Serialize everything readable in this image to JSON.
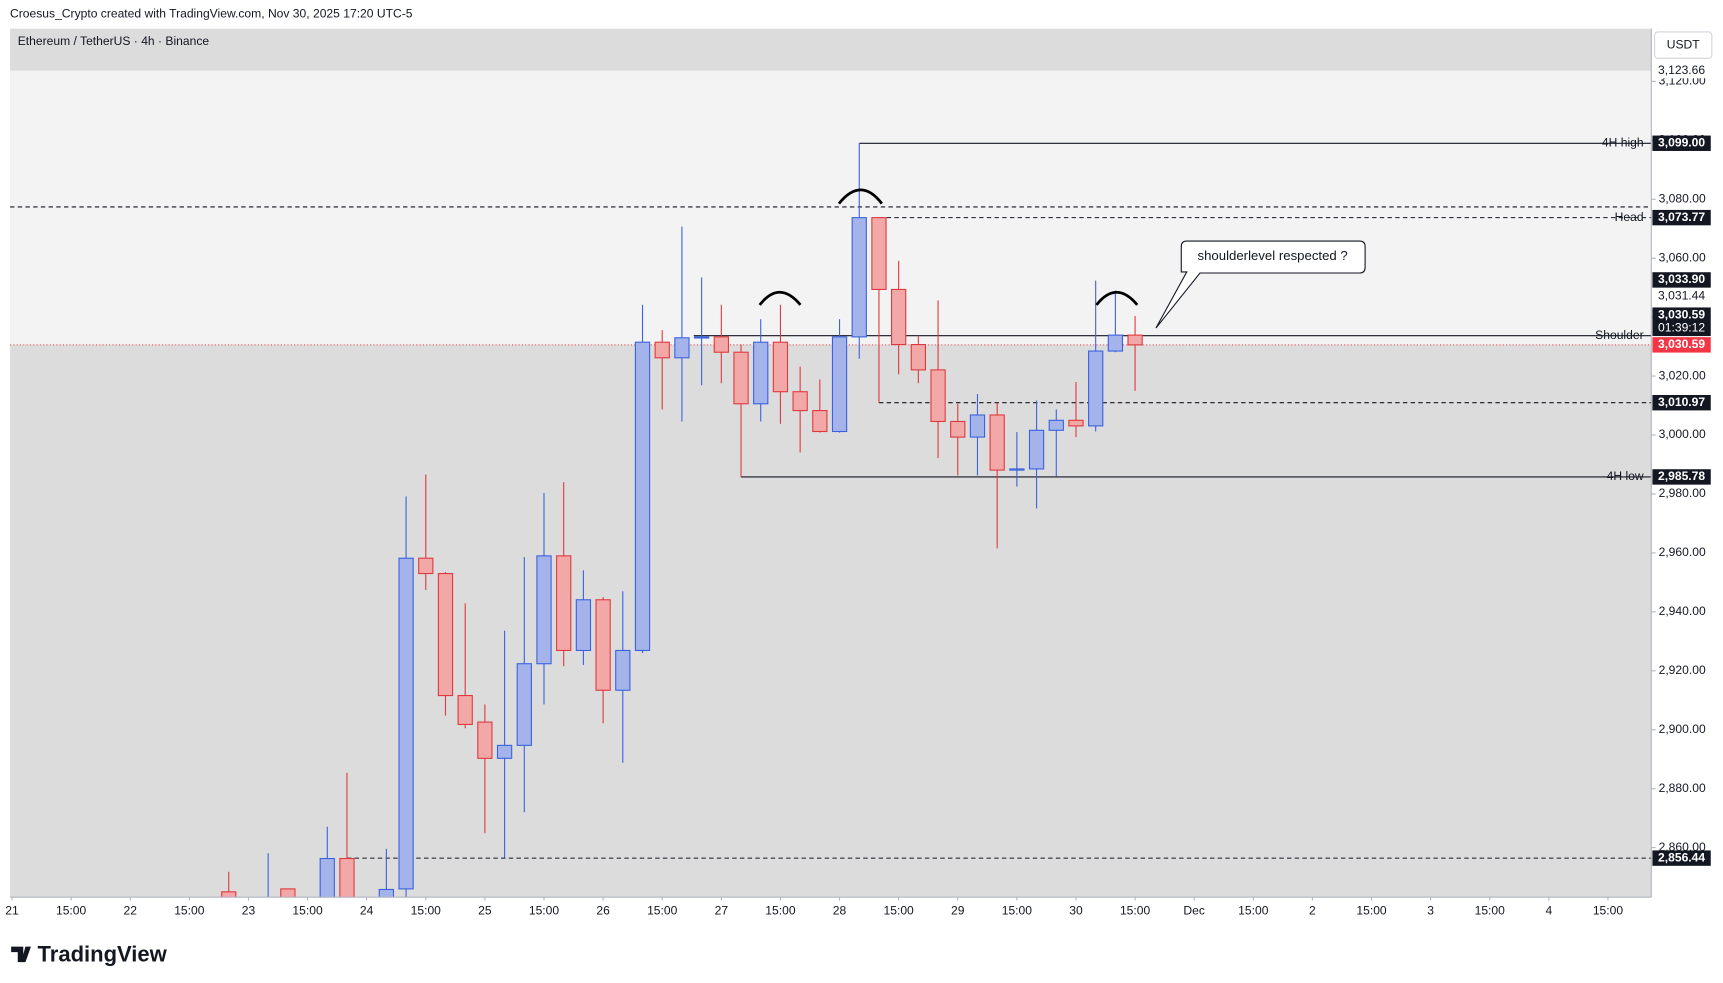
{
  "chart_data": {
    "type": "candlestick",
    "header": "Croesus_Crypto created with TradingView.com, Nov 30, 2025 17:20 UTC-5",
    "symbol": "Ethereum / TetherUS · 4h · Binance",
    "currency": "USDT",
    "brand": "TradingView",
    "up_color": "#a4b4ea",
    "up_edge": "#3a62e0",
    "down_color": "#f3a8a8",
    "down_edge": "#e0393d",
    "x": [
      0,
      2,
      3,
      5,
      6,
      8,
      9,
      10,
      11,
      12,
      13,
      14,
      15,
      16,
      17,
      18,
      19,
      20,
      21,
      22,
      23,
      24,
      25,
      26,
      27,
      28,
      29,
      30,
      31,
      32,
      33,
      34,
      35,
      36,
      37,
      38,
      39,
      40,
      41,
      42,
      43,
      44,
      45,
      46
    ],
    "open": [
      2845,
      2840,
      2846,
      2840,
      2856.3,
      2840,
      2846,
      2958.2,
      2953.0,
      2911.6,
      2902.6,
      2890.3,
      2894.7,
      2922.4,
      2959.0,
      2926.9,
      2944.1,
      2913.4,
      2926.9,
      3031.5,
      3026.2,
      3033.0,
      3033.3,
      3028.1,
      3010.6,
      3031.5,
      3014.7,
      3008.3,
      3001.2,
      3033.3,
      3073.77,
      3049.4,
      3030.7,
      3022.1,
      3004.6,
      2999.3,
      3006.8,
      2988.1,
      2988.5,
      3001.6,
      3005.0,
      3003.1,
      3028.5,
      3033.9
    ],
    "high": [
      2851.8,
      2858.1,
      2845.8,
      2867.1,
      2885.4,
      2859.6,
      2979.2,
      2986.6,
      2953.5,
      2942.9,
      2908.6,
      2933.6,
      2958.6,
      2980.3,
      2984.0,
      2954.1,
      2945.0,
      2947.0,
      3044.2,
      3035.6,
      3070.7,
      3053.5,
      3044.2,
      3030.7,
      3039.3,
      3044.2,
      3023.2,
      3018.8,
      3039.3,
      3099.0,
      3073.77,
      3059.1,
      3033.7,
      3045.7,
      3010.6,
      3013.9,
      3010.9,
      3001.0,
      3011.7,
      3008.7,
      3018.0,
      3052.4,
      3049.0,
      3040.4
    ],
    "low": [
      2835,
      2830,
      2838,
      2835,
      2838,
      2838,
      2842,
      2947.4,
      2904.8,
      2900.5,
      2864.9,
      2856.6,
      2872.0,
      2908.6,
      2921.6,
      2922.0,
      2902.2,
      2888.8,
      2926.0,
      3008.7,
      3004.6,
      3016.9,
      3017.6,
      2985.78,
      3004.6,
      3003.8,
      2994.1,
      3000.8,
      3000.8,
      3025.9,
      3010.9,
      3020.6,
      3017.6,
      2992.2,
      2986.3,
      2986.3,
      2961.6,
      2982.5,
      2975.1,
      2986.0,
      2999.3,
      3001.2,
      3028.1,
      3015.0
    ],
    "close": [
      2840,
      2842,
      2839,
      2856.3,
      2840,
      2845.8,
      2958.2,
      2953.0,
      2911.6,
      2901.8,
      2890.3,
      2894.7,
      2922.4,
      2959.0,
      2926.9,
      2944.1,
      2913.4,
      2926.9,
      3031.5,
      3026.2,
      3033.0,
      3033.3,
      3028.1,
      3010.6,
      3031.5,
      3014.7,
      3008.3,
      3001.2,
      3033.3,
      3073.77,
      3049.4,
      3030.7,
      3022.1,
      3004.6,
      2999.3,
      3006.8,
      2988.1,
      2988.5,
      3001.6,
      3005.0,
      3003.1,
      3028.5,
      3033.9,
      3030.59
    ],
    "xlim": [
      -11.1,
      72.2
    ],
    "ylim": [
      2843.2,
      3137.9
    ],
    "yticks": [
      {
        "value": 3120,
        "label": "3,120.00"
      },
      {
        "value": 3100,
        "label": "3,100.00"
      },
      {
        "value": 3080,
        "label": "3,080.00"
      },
      {
        "value": 3060,
        "label": "3,060.00"
      },
      {
        "value": 3040,
        "label": "3,040.00"
      },
      {
        "value": 3020,
        "label": "3,020.00"
      },
      {
        "value": 3000,
        "label": "3,000.00"
      },
      {
        "value": 2980,
        "label": "2,980.00"
      },
      {
        "value": 2960,
        "label": "2,960.00"
      },
      {
        "value": 2940,
        "label": "2,940.00"
      },
      {
        "value": 2920,
        "label": "2,920.00"
      },
      {
        "value": 2900,
        "label": "2,900.00"
      },
      {
        "value": 2880,
        "label": "2,880.00"
      },
      {
        "value": 2860,
        "label": "2,860.00"
      }
    ],
    "xticks": [
      {
        "value": -11,
        "label": "21"
      },
      {
        "value": -8,
        "label": "15:00"
      },
      {
        "value": -5,
        "label": "22"
      },
      {
        "value": -2,
        "label": "15:00"
      },
      {
        "value": 1,
        "label": "23"
      },
      {
        "value": 4,
        "label": "15:00"
      },
      {
        "value": 7,
        "label": "24"
      },
      {
        "value": 10,
        "label": "15:00"
      },
      {
        "value": 13,
        "label": "25"
      },
      {
        "value": 16,
        "label": "15:00"
      },
      {
        "value": 19,
        "label": "26"
      },
      {
        "value": 22,
        "label": "15:00"
      },
      {
        "value": 25,
        "label": "27"
      },
      {
        "value": 28,
        "label": "15:00"
      },
      {
        "value": 31,
        "label": "28"
      },
      {
        "value": 34,
        "label": "15:00"
      },
      {
        "value": 37,
        "label": "29"
      },
      {
        "value": 40,
        "label": "15:00"
      },
      {
        "value": 43,
        "label": "30"
      },
      {
        "value": 46,
        "label": "15:00"
      },
      {
        "value": 49,
        "label": "Dec"
      },
      {
        "value": 52,
        "label": "15:00"
      },
      {
        "value": 55,
        "label": "2"
      },
      {
        "value": 58,
        "label": "15:00"
      },
      {
        "value": 61,
        "label": "3"
      },
      {
        "value": 64,
        "label": "15:00"
      },
      {
        "value": 67,
        "label": "4"
      },
      {
        "value": 70,
        "label": "15:00"
      }
    ],
    "zone": {
      "low": 3030.59,
      "high": 3123.66,
      "label": "3,123.66"
    },
    "levels": [
      {
        "name": "4H high",
        "value": 3099.0,
        "label": "3,099.00",
        "from": 32,
        "dashed": false
      },
      {
        "value": 3077.4,
        "from": -11.1,
        "dashed": true
      },
      {
        "name": "Head",
        "value": 3073.77,
        "label": "3,073.77",
        "from": 33,
        "dashed": true
      },
      {
        "name": "Shoulder",
        "value": 3033.7,
        "from": 23.6,
        "dashed": false
      },
      {
        "value": 3010.97,
        "label": "3,010.97",
        "from": 33,
        "dashed": true
      },
      {
        "name": "4H low",
        "value": 2985.78,
        "label": "2,985.78",
        "from": 26,
        "dashed": false
      },
      {
        "value": 2856.44,
        "label": "2,856.44",
        "from": 6,
        "dashed": true
      }
    ],
    "last_price": {
      "value": 3030.59,
      "label": "3,030.59",
      "color": "#f23645"
    },
    "stack_labels": [
      {
        "label": "3,033.90",
        "boxed": true
      },
      {
        "label": "3,031.44",
        "boxed": false
      },
      {
        "label": "3,030.59",
        "boxed": true,
        "countdown": "01:39:12"
      }
    ],
    "annotation": "shoulderlevel respected ?"
  }
}
